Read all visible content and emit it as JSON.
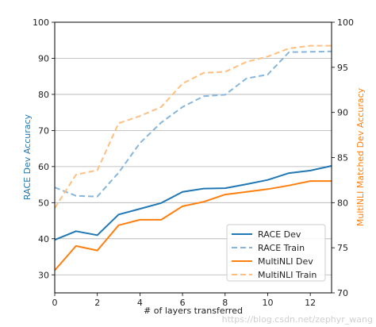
{
  "chart_data": {
    "type": "line",
    "title": "",
    "xlabel": "# of layers transferred",
    "ylabel_left": "RACE Dev Accuracy",
    "ylabel_right": "MultiNLI Matched Dev Accuracy",
    "xlim": [
      0,
      13
    ],
    "ylim_left": [
      25,
      100
    ],
    "ylim_right": [
      70,
      100
    ],
    "x_ticks": [
      0,
      2,
      4,
      6,
      8,
      10,
      12
    ],
    "y_left_ticks": [
      30,
      40,
      50,
      60,
      70,
      80,
      90,
      100
    ],
    "y_right_ticks": [
      70,
      75,
      80,
      85,
      90,
      95,
      100
    ],
    "grid": true,
    "legend_position": "lower-right",
    "x": [
      0,
      1,
      2,
      3,
      4,
      5,
      6,
      7,
      8,
      9,
      10,
      11,
      12,
      13
    ],
    "series": [
      {
        "name": "RACE Dev",
        "axis": "left",
        "style": "solid",
        "color": "#1f77b4",
        "values": [
          39.7,
          42.1,
          41.0,
          46.7,
          48.3,
          49.9,
          53.0,
          53.9,
          54.0,
          55.1,
          56.3,
          58.2,
          58.9,
          60.2
        ]
      },
      {
        "name": "RACE Train",
        "axis": "left",
        "style": "dashed",
        "color": "#86b6dd",
        "values": [
          54.2,
          51.9,
          51.7,
          58.3,
          66.5,
          72.2,
          76.5,
          79.5,
          79.9,
          84.4,
          85.5,
          91.7,
          91.8,
          91.9
        ]
      },
      {
        "name": "MultiNLI Dev",
        "axis": "right",
        "style": "solid",
        "color": "#ff7f0e",
        "values": [
          72.5,
          75.2,
          74.7,
          77.5,
          78.1,
          78.1,
          79.6,
          80.1,
          80.9,
          81.2,
          81.5,
          81.9,
          82.4,
          82.4
        ]
      },
      {
        "name": "MultiNLI Train",
        "axis": "right",
        "style": "dashed",
        "color": "#ffbf80",
        "values": [
          79.4,
          83.1,
          83.6,
          88.8,
          89.6,
          90.6,
          93.2,
          94.4,
          94.5,
          95.6,
          96.2,
          97.1,
          97.4,
          97.4
        ]
      }
    ]
  },
  "watermark": "https://blog.csdn.net/zephyr_wang"
}
